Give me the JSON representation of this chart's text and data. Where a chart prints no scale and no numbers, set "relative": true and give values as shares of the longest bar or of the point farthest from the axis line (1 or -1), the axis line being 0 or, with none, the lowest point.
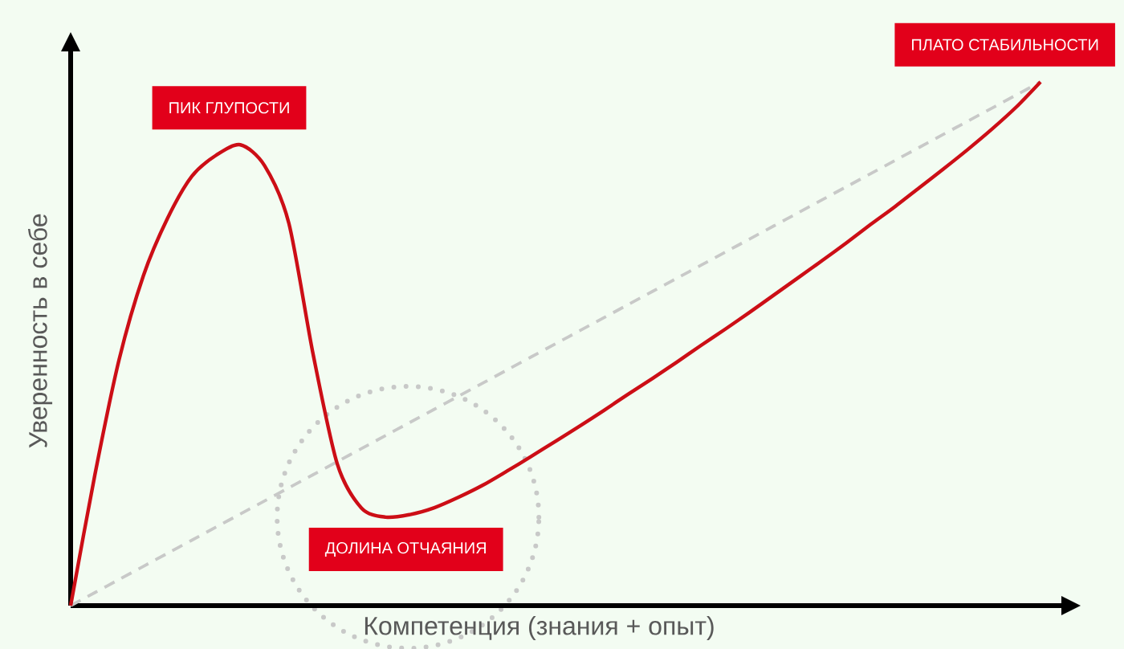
{
  "chart_data": {
    "type": "line",
    "relative": true,
    "marker": "none",
    "xlabel": "Компетенция (знания + опыт)",
    "ylabel": "Уверенность в себе",
    "categories": [
      null,
      null,
      null,
      null,
      null,
      null,
      null,
      null,
      null,
      null,
      null,
      null,
      null,
      null,
      null,
      null,
      null,
      null,
      null,
      null,
      null,
      null,
      null,
      null,
      null,
      null,
      null,
      null,
      null,
      null,
      null,
      null,
      null,
      null,
      null,
      null,
      null,
      null,
      null,
      null,
      null
    ],
    "series": [
      {
        "color": "#c8c9c8",
        "line_style": "dashed",
        "values": [
          0,
          0.025,
          0.05,
          0.075,
          0.1,
          0.125,
          0.15,
          0.175,
          0.2,
          0.225,
          0.25,
          0.275,
          0.3,
          0.325,
          0.35,
          0.375,
          0.4,
          0.425,
          0.45,
          0.475,
          0.5,
          0.525,
          0.55,
          0.575,
          0.6,
          0.625,
          0.65,
          0.675,
          0.7,
          0.725,
          0.75,
          0.775,
          0.8,
          0.825,
          0.85,
          0.875,
          0.9,
          0.925,
          0.95,
          0.975,
          1
        ]
      },
      {
        "color": "#cc0e16",
        "line_style": "solid",
        "values": [
          0,
          0.25,
          0.47,
          0.63,
          0.74,
          0.82,
          0.86,
          0.88,
          0.84,
          0.73,
          0.48,
          0.27,
          0.186,
          0.169,
          0.174,
          0.187,
          0.207,
          0.23,
          0.257,
          0.285,
          0.314,
          0.343,
          0.373,
          0.404,
          0.434,
          0.465,
          0.497,
          0.528,
          0.56,
          0.593,
          0.626,
          0.659,
          0.693,
          0.728,
          0.762,
          0.798,
          0.834,
          0.871,
          0.91,
          0.952,
          1
        ]
      }
    ],
    "annotations": [
      "ПИК ГЛУПОСТИ",
      "ДОЛИНА ОТЧАЯНИЯ",
      "ПЛАТО СТАБИЛЬНОСТИ"
    ]
  }
}
